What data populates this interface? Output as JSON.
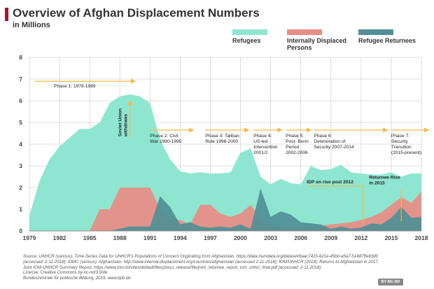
{
  "header": {
    "title": "Overview of Afghan Displacement Numbers",
    "subtitle": "in Millions"
  },
  "colors": {
    "accent": "#9b1b30",
    "refugees": "#8ee6d0",
    "idp": "#e98c84",
    "returnees": "#4f8f95",
    "arrows": "#f7b84d"
  },
  "chart_data": {
    "type": "area",
    "title": "Overview of Afghan Displacement Numbers",
    "subtitle": "in Millions",
    "xlim": [
      1979,
      2018
    ],
    "ylim": [
      0,
      8
    ],
    "x_ticks": [
      1979,
      1982,
      1985,
      1988,
      1991,
      1994,
      1997,
      2000,
      2003,
      2006,
      2009,
      2012,
      2015,
      2018
    ],
    "y_ticks": [
      0,
      1,
      2,
      3,
      4,
      5,
      6,
      7,
      8
    ],
    "grid": true,
    "legend_position": "top-right",
    "x": [
      1979,
      1980,
      1981,
      1982,
      1983,
      1984,
      1985,
      1986,
      1987,
      1988,
      1989,
      1990,
      1991,
      1992,
      1993,
      1994,
      1995,
      1996,
      1997,
      1998,
      1999,
      2000,
      2001,
      2002,
      2003,
      2004,
      2005,
      2006,
      2007,
      2008,
      2009,
      2010,
      2011,
      2012,
      2013,
      2014,
      2015,
      2016,
      2017,
      2018
    ],
    "series": [
      {
        "name": "Refugees",
        "values": [
          0.7,
          2.3,
          3.3,
          3.9,
          4.3,
          4.7,
          4.7,
          5.0,
          5.9,
          6.2,
          6.3,
          6.2,
          5.9,
          4.2,
          3.3,
          2.75,
          2.65,
          2.7,
          2.65,
          2.65,
          2.7,
          3.6,
          3.8,
          2.5,
          2.15,
          2.4,
          2.2,
          2.15,
          3.0,
          2.8,
          2.85,
          3.05,
          2.7,
          2.65,
          2.6,
          2.6,
          2.7,
          2.5,
          2.65,
          2.65
        ]
      },
      {
        "name": "Internally Displaced Persons",
        "values": [
          0,
          0,
          0,
          0,
          0,
          0,
          0,
          1.0,
          1.0,
          2.0,
          2.0,
          2.0,
          2.0,
          1.0,
          0.5,
          0.5,
          0.3,
          1.2,
          1.2,
          0.8,
          0.65,
          0.8,
          1.2,
          0.6,
          0.2,
          0.2,
          0.15,
          0.15,
          0.2,
          0.25,
          0.3,
          0.35,
          0.4,
          0.5,
          0.65,
          0.85,
          1.2,
          1.55,
          1.3,
          1.8
        ]
      },
      {
        "name": "Refugee Returnees",
        "values": [
          0,
          0,
          0,
          0,
          0,
          0,
          0,
          0,
          0,
          0.1,
          0.2,
          0.2,
          0.2,
          1.6,
          1.1,
          0.3,
          0.4,
          0.2,
          0.15,
          0.2,
          0.15,
          0.3,
          0.1,
          1.95,
          0.65,
          0.9,
          0.75,
          0.4,
          0.35,
          0.3,
          0.1,
          0.2,
          0.1,
          0.15,
          0.35,
          0.3,
          0.6,
          1.1,
          0.6,
          0.65
        ]
      }
    ],
    "annotations": [
      {
        "label": "Phase 1: 1978-1989",
        "from": 1979.5,
        "to": 1989.5
      },
      {
        "label": "Phase 2:  Civil War 1990-1995",
        "from": 1991,
        "to": 1995.3
      },
      {
        "label": "Phase 3:  Taliban Rule 1996-2000",
        "from": 1996.5,
        "to": 2000.8
      },
      {
        "label": "Phase 4: US-led Intervention 2001/2",
        "from": 2001.3,
        "to": 2004.1
      },
      {
        "label": "Phase 5: Post- Bonn Period 2002-2006",
        "from": 2004.5,
        "to": 2007
      },
      {
        "label": "Phase 6: Deterioration of Security 2007-2014",
        "from": 2007.3,
        "to": 2014.6
      },
      {
        "label": "Phase 7: Security Transition (2015-present)",
        "from": 2015,
        "to": 2019.2
      }
    ],
    "callouts": [
      {
        "label": "Soviet Union withdraws",
        "year": 1989
      },
      {
        "label": "IDP on rise post 2012",
        "year": 2012
      },
      {
        "label": "Returnee Rise in 2015",
        "year": 2016
      }
    ]
  },
  "source": {
    "text": "Source: UNHCR (various): Time-Series Data for UNHCR's Populations of Concern Originating from Afghanistan. https://data.humdata.org/dataset/6aac7415-621e-45b0-a5a7-51487ffe83d0 (accessed: 2-11-2018); IDMC (various): Afghanistan. http://www.internal-displacement.org/countries/afghanistan (accessed 2-11-2018); IOM/UNHCR (2018): Returns to Afghanistan in 2017. Joint IOM-UNHCR Summary Report. https://www.iom.int/sites/default/files/press_release/file/joint_returnee_report_iom_unhcr_final.pdf (accessed: 2-11-2018).",
    "license": "License: Creative Commons by-nc-nd/3.0/de",
    "publisher": "Bundeszentrale für politische Bildung, 2019, www.bpb.de",
    "badge": "BY-NC-ND"
  }
}
